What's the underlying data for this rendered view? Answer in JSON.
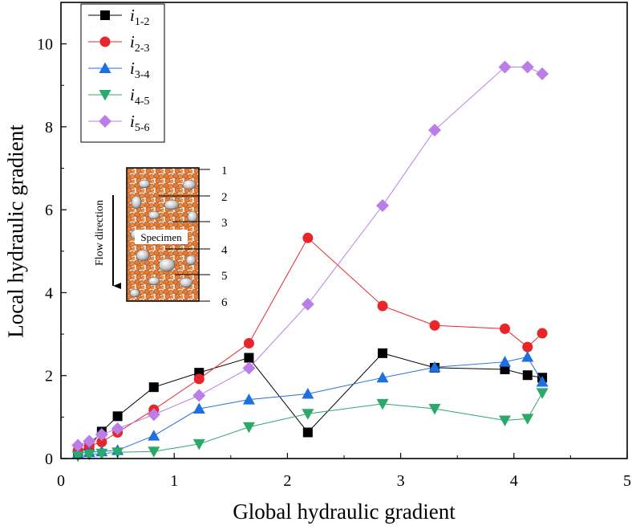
{
  "chart_data": {
    "type": "line",
    "xlabel": "Global hydraulic gradient",
    "ylabel": "Local hydraulic gradient",
    "xlim": [
      0,
      5
    ],
    "ylim": [
      0,
      11
    ],
    "xticks": [
      0,
      1,
      2,
      3,
      4,
      5
    ],
    "yticks": [
      0,
      2,
      4,
      6,
      8,
      10
    ],
    "grid": false,
    "legend_position": "top-left",
    "series": [
      {
        "name": "i",
        "subscript": "1-2",
        "color": "#000000",
        "marker": "square",
        "x": [
          0.15,
          0.25,
          0.36,
          0.5,
          0.82,
          1.22,
          1.66,
          2.18,
          2.84,
          3.3,
          3.92,
          4.12,
          4.25
        ],
        "y": [
          0.12,
          0.3,
          0.65,
          1.02,
          1.72,
          2.07,
          2.43,
          0.63,
          2.54,
          2.19,
          2.15,
          2.01,
          1.95
        ]
      },
      {
        "name": "i",
        "subscript": "2-3",
        "color": "#e8262a",
        "marker": "circle",
        "x": [
          0.15,
          0.25,
          0.36,
          0.5,
          0.82,
          1.22,
          1.66,
          2.18,
          2.84,
          3.3,
          3.92,
          4.12,
          4.25
        ],
        "y": [
          0.2,
          0.3,
          0.4,
          0.63,
          1.18,
          1.92,
          2.78,
          5.32,
          3.68,
          3.21,
          3.13,
          2.69,
          3.02
        ]
      },
      {
        "name": "i",
        "subscript": "3-4",
        "color": "#1e6fe0",
        "marker": "triangle-up",
        "x": [
          0.15,
          0.25,
          0.36,
          0.5,
          0.82,
          1.22,
          1.66,
          2.18,
          2.84,
          3.3,
          3.92,
          4.12,
          4.25
        ],
        "y": [
          0.12,
          0.15,
          0.17,
          0.2,
          0.55,
          1.2,
          1.42,
          1.56,
          1.95,
          2.2,
          2.33,
          2.45,
          1.85
        ]
      },
      {
        "name": "i",
        "subscript": "4-5",
        "color": "#2ca86a",
        "marker": "triangle-down",
        "x": [
          0.15,
          0.25,
          0.36,
          0.5,
          0.82,
          1.22,
          1.66,
          2.18,
          2.84,
          3.3,
          3.92,
          4.12,
          4.25
        ],
        "y": [
          0.06,
          0.1,
          0.12,
          0.15,
          0.17,
          0.35,
          0.76,
          1.08,
          1.32,
          1.2,
          0.92,
          0.96,
          1.58
        ]
      },
      {
        "name": "i",
        "subscript": "5-6",
        "color": "#bb7ee8",
        "marker": "diamond",
        "x": [
          0.15,
          0.25,
          0.36,
          0.5,
          0.82,
          1.22,
          1.66,
          2.18,
          2.84,
          3.3,
          3.92,
          4.12,
          4.25
        ],
        "y": [
          0.32,
          0.42,
          0.58,
          0.72,
          1.06,
          1.52,
          2.18,
          3.72,
          6.1,
          7.92,
          9.44,
          9.44,
          9.28
        ]
      }
    ],
    "inset": {
      "flow_label": "Flow direction",
      "specimen_label": "Specimen",
      "section_labels": [
        "1",
        "2",
        "3",
        "4",
        "5",
        "6"
      ]
    }
  }
}
